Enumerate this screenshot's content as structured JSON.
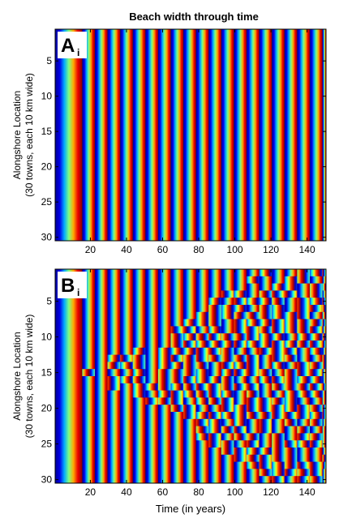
{
  "title": "Beach width through time",
  "chart_data": [
    {
      "type": "heatmap",
      "panel_label": "A",
      "panel_label_sub": "i",
      "colormap": "jet",
      "colormap_stops": [
        "#00008f",
        "#0000ff",
        "#00ffff",
        "#ffff00",
        "#ff0000",
        "#800000"
      ],
      "x_range": [
        1,
        150
      ],
      "y_range": [
        1,
        30
      ],
      "y_reversed": true,
      "x_tick_values": [
        20,
        40,
        60,
        80,
        100,
        120,
        140
      ],
      "x_tick_labels": [
        "20",
        "40",
        "60",
        "80",
        "100",
        "120",
        "140"
      ],
      "y_tick_values": [
        5,
        10,
        15,
        20,
        25,
        30
      ],
      "y_tick_labels": [
        "5",
        "10",
        "15",
        "20",
        "25",
        "30"
      ],
      "xlabel": "",
      "ylabel_line1": "Alongshore Location",
      "ylabel_line2": "(30 towns, each 10 km wide)",
      "cycle_start_years": [
        1,
        16,
        23,
        30,
        37,
        44,
        51,
        58,
        65,
        72,
        79,
        86,
        93,
        100,
        107,
        114,
        121,
        128,
        135,
        142,
        149
      ],
      "desynchronized": false
    },
    {
      "type": "heatmap",
      "panel_label": "B",
      "panel_label_sub": "i",
      "colormap": "jet",
      "colormap_stops": [
        "#00008f",
        "#0000ff",
        "#00ffff",
        "#ffff00",
        "#ff0000",
        "#800000"
      ],
      "x_range": [
        1,
        150
      ],
      "y_range": [
        1,
        30
      ],
      "y_reversed": true,
      "x_tick_values": [
        20,
        40,
        60,
        80,
        100,
        120,
        140
      ],
      "x_tick_labels": [
        "20",
        "40",
        "60",
        "80",
        "100",
        "120",
        "140"
      ],
      "y_tick_values": [
        5,
        10,
        15,
        20,
        25,
        30
      ],
      "y_tick_labels": [
        "5",
        "10",
        "15",
        "20",
        "25",
        "30"
      ],
      "xlabel": "Time (in years)",
      "ylabel_line1": "Alongshore Location",
      "ylabel_line2": "(30 towns, each 10 km wide)",
      "cycle_start_years": [
        1,
        16,
        23,
        30,
        37,
        44,
        51,
        58,
        65,
        72,
        79,
        86,
        93,
        100,
        107,
        114,
        121,
        128,
        135,
        142,
        149
      ],
      "desynchronized": true,
      "desync_onset_year_by_location": [
        109,
        103,
        97,
        91,
        85,
        79,
        73,
        66,
        59,
        52,
        45,
        38,
        30,
        24,
        16,
        24,
        30,
        38,
        45,
        52,
        59,
        66,
        73,
        79,
        85,
        91,
        97,
        103,
        109,
        115
      ]
    }
  ]
}
